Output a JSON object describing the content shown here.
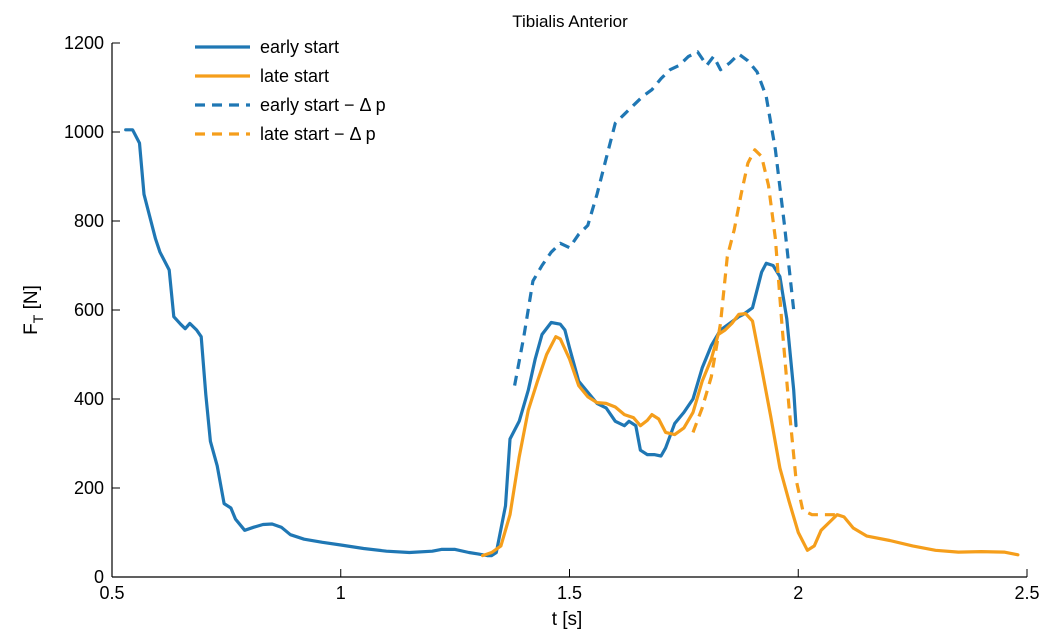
{
  "chart_data": {
    "type": "line",
    "title": "Tibialis Anterior",
    "xlabel": "t [s]",
    "ylabel_main": "F",
    "ylabel_sub": "T",
    "ylabel_unit": " [N]",
    "xlim": [
      0.5,
      2.5
    ],
    "ylim": [
      0,
      1200
    ],
    "xticks": [
      0.5,
      1,
      1.5,
      2,
      2.5
    ],
    "xtick_labels": [
      "0.5",
      "1",
      "1.5",
      "2",
      "2.5"
    ],
    "yticks": [
      0,
      200,
      400,
      600,
      800,
      1000,
      1200
    ],
    "ytick_labels": [
      "0",
      "200",
      "400",
      "600",
      "800",
      "1000",
      "1200"
    ],
    "grid": false,
    "legend_position": "top-left",
    "series": [
      {
        "name": "early start",
        "color": "#1f77b4",
        "dash": "solid",
        "points": [
          [
            0.53,
            1005
          ],
          [
            0.545,
            1005
          ],
          [
            0.56,
            975
          ],
          [
            0.57,
            860
          ],
          [
            0.585,
            800
          ],
          [
            0.595,
            760
          ],
          [
            0.605,
            730
          ],
          [
            0.62,
            700
          ],
          [
            0.625,
            690
          ],
          [
            0.635,
            585
          ],
          [
            0.65,
            568
          ],
          [
            0.66,
            558
          ],
          [
            0.67,
            570
          ],
          [
            0.685,
            555
          ],
          [
            0.695,
            540
          ],
          [
            0.705,
            410
          ],
          [
            0.715,
            305
          ],
          [
            0.73,
            250
          ],
          [
            0.745,
            165
          ],
          [
            0.76,
            155
          ],
          [
            0.77,
            130
          ],
          [
            0.79,
            105
          ],
          [
            0.81,
            112
          ],
          [
            0.83,
            118
          ],
          [
            0.85,
            119
          ],
          [
            0.87,
            112
          ],
          [
            0.89,
            95
          ],
          [
            0.92,
            85
          ],
          [
            0.96,
            78
          ],
          [
            1.0,
            72
          ],
          [
            1.05,
            64
          ],
          [
            1.1,
            58
          ],
          [
            1.15,
            55
          ],
          [
            1.2,
            58
          ],
          [
            1.22,
            62
          ],
          [
            1.25,
            62
          ],
          [
            1.28,
            55
          ],
          [
            1.3,
            52
          ],
          [
            1.32,
            48
          ],
          [
            1.33,
            48
          ],
          [
            1.34,
            55
          ],
          [
            1.36,
            160
          ],
          [
            1.37,
            310
          ],
          [
            1.39,
            350
          ],
          [
            1.41,
            420
          ],
          [
            1.425,
            490
          ],
          [
            1.44,
            545
          ],
          [
            1.46,
            572
          ],
          [
            1.48,
            568
          ],
          [
            1.49,
            555
          ],
          [
            1.5,
            515
          ],
          [
            1.52,
            440
          ],
          [
            1.54,
            415
          ],
          [
            1.56,
            390
          ],
          [
            1.58,
            380
          ],
          [
            1.6,
            350
          ],
          [
            1.62,
            340
          ],
          [
            1.63,
            350
          ],
          [
            1.645,
            340
          ],
          [
            1.655,
            285
          ],
          [
            1.67,
            275
          ],
          [
            1.685,
            275
          ],
          [
            1.7,
            272
          ],
          [
            1.71,
            290
          ],
          [
            1.73,
            345
          ],
          [
            1.75,
            370
          ],
          [
            1.77,
            400
          ],
          [
            1.79,
            470
          ],
          [
            1.81,
            520
          ],
          [
            1.83,
            555
          ],
          [
            1.85,
            570
          ],
          [
            1.87,
            585
          ],
          [
            1.88,
            590
          ],
          [
            1.9,
            605
          ],
          [
            1.92,
            685
          ],
          [
            1.93,
            705
          ],
          [
            1.945,
            700
          ],
          [
            1.96,
            675
          ],
          [
            1.975,
            580
          ],
          [
            1.99,
            420
          ],
          [
            1.995,
            340
          ]
        ]
      },
      {
        "name": "late start",
        "color": "#f59e1b",
        "dash": "solid",
        "points": [
          [
            1.31,
            48
          ],
          [
            1.33,
            55
          ],
          [
            1.35,
            70
          ],
          [
            1.37,
            140
          ],
          [
            1.39,
            270
          ],
          [
            1.41,
            375
          ],
          [
            1.43,
            440
          ],
          [
            1.45,
            500
          ],
          [
            1.47,
            540
          ],
          [
            1.48,
            535
          ],
          [
            1.5,
            490
          ],
          [
            1.52,
            430
          ],
          [
            1.54,
            405
          ],
          [
            1.56,
            392
          ],
          [
            1.58,
            390
          ],
          [
            1.6,
            382
          ],
          [
            1.62,
            365
          ],
          [
            1.64,
            358
          ],
          [
            1.655,
            340
          ],
          [
            1.67,
            352
          ],
          [
            1.68,
            365
          ],
          [
            1.695,
            355
          ],
          [
            1.71,
            325
          ],
          [
            1.73,
            320
          ],
          [
            1.75,
            335
          ],
          [
            1.77,
            370
          ],
          [
            1.79,
            440
          ],
          [
            1.81,
            490
          ],
          [
            1.825,
            545
          ],
          [
            1.84,
            555
          ],
          [
            1.855,
            570
          ],
          [
            1.87,
            590
          ],
          [
            1.885,
            592
          ],
          [
            1.9,
            575
          ],
          [
            1.92,
            470
          ],
          [
            1.94,
            360
          ],
          [
            1.96,
            245
          ],
          [
            1.98,
            170
          ],
          [
            2.0,
            100
          ],
          [
            2.02,
            60
          ],
          [
            2.035,
            70
          ],
          [
            2.05,
            105
          ],
          [
            2.07,
            125
          ],
          [
            2.085,
            140
          ],
          [
            2.1,
            135
          ],
          [
            2.12,
            110
          ],
          [
            2.15,
            92
          ],
          [
            2.2,
            82
          ],
          [
            2.25,
            70
          ],
          [
            2.3,
            60
          ],
          [
            2.35,
            56
          ],
          [
            2.4,
            57
          ],
          [
            2.45,
            56
          ],
          [
            2.48,
            50
          ]
        ]
      },
      {
        "name": "early start − Δ p",
        "color": "#1f77b4",
        "dash": "dashed",
        "points": [
          [
            1.38,
            430
          ],
          [
            1.4,
            540
          ],
          [
            1.42,
            665
          ],
          [
            1.44,
            700
          ],
          [
            1.46,
            730
          ],
          [
            1.48,
            750
          ],
          [
            1.5,
            740
          ],
          [
            1.52,
            770
          ],
          [
            1.54,
            790
          ],
          [
            1.56,
            860
          ],
          [
            1.58,
            940
          ],
          [
            1.6,
            1020
          ],
          [
            1.62,
            1040
          ],
          [
            1.64,
            1060
          ],
          [
            1.66,
            1080
          ],
          [
            1.68,
            1095
          ],
          [
            1.7,
            1120
          ],
          [
            1.72,
            1140
          ],
          [
            1.74,
            1150
          ],
          [
            1.76,
            1170
          ],
          [
            1.78,
            1180
          ],
          [
            1.8,
            1150
          ],
          [
            1.815,
            1170
          ],
          [
            1.83,
            1140
          ],
          [
            1.85,
            1155
          ],
          [
            1.87,
            1175
          ],
          [
            1.89,
            1160
          ],
          [
            1.91,
            1135
          ],
          [
            1.93,
            1080
          ],
          [
            1.95,
            960
          ],
          [
            1.97,
            790
          ],
          [
            1.99,
            600
          ]
        ]
      },
      {
        "name": "late start − Δ p",
        "color": "#f59e1b",
        "dash": "dashed",
        "points": [
          [
            1.77,
            325
          ],
          [
            1.79,
            380
          ],
          [
            1.81,
            450
          ],
          [
            1.83,
            570
          ],
          [
            1.845,
            720
          ],
          [
            1.86,
            780
          ],
          [
            1.875,
            860
          ],
          [
            1.89,
            930
          ],
          [
            1.905,
            960
          ],
          [
            1.92,
            945
          ],
          [
            1.935,
            880
          ],
          [
            1.95,
            760
          ],
          [
            1.965,
            560
          ],
          [
            1.98,
            380
          ],
          [
            1.995,
            220
          ],
          [
            2.01,
            150
          ],
          [
            2.03,
            140
          ],
          [
            2.08,
            140
          ]
        ]
      }
    ]
  }
}
